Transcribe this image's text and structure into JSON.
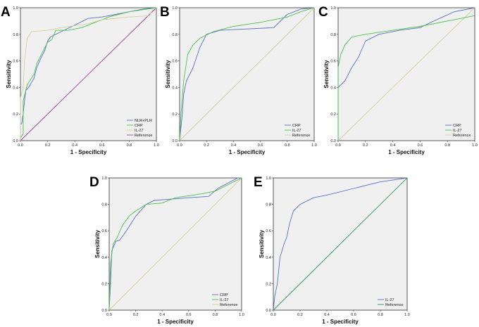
{
  "chart_data": [
    {
      "type": "line",
      "panel_label": "A",
      "xlabel": "1 - Specificity",
      "ylabel": "Sensitivity",
      "xlim": [
        0,
        1
      ],
      "ylim": [
        0,
        1
      ],
      "ticks": [
        "0.0",
        "0.2",
        "0.4",
        "0.6",
        "0.8",
        "1.0"
      ],
      "legend_position": "bottom-right",
      "series": [
        {
          "name": "NLR+PLR",
          "color": "#5a6fc4",
          "points": [
            [
              0,
              0
            ],
            [
              0,
              0.12
            ],
            [
              0.01,
              0.13
            ],
            [
              0.02,
              0.2
            ],
            [
              0.03,
              0.3
            ],
            [
              0.04,
              0.38
            ],
            [
              0.06,
              0.4
            ],
            [
              0.1,
              0.47
            ],
            [
              0.12,
              0.55
            ],
            [
              0.15,
              0.62
            ],
            [
              0.18,
              0.68
            ],
            [
              0.2,
              0.75
            ],
            [
              0.22,
              0.78
            ],
            [
              0.3,
              0.82
            ],
            [
              0.4,
              0.87
            ],
            [
              0.5,
              0.92
            ],
            [
              0.6,
              0.93
            ],
            [
              0.7,
              0.95
            ],
            [
              0.8,
              0.97
            ],
            [
              0.9,
              0.99
            ],
            [
              1,
              1
            ]
          ]
        },
        {
          "name": "CRP",
          "color": "#4cc24c",
          "points": [
            [
              0,
              0
            ],
            [
              0,
              0.02
            ],
            [
              0.02,
              0.05
            ],
            [
              0.02,
              0.3
            ],
            [
              0.05,
              0.42
            ],
            [
              0.1,
              0.5
            ],
            [
              0.12,
              0.58
            ],
            [
              0.2,
              0.74
            ],
            [
              0.23,
              0.76
            ],
            [
              0.26,
              0.83
            ],
            [
              0.35,
              0.83
            ],
            [
              0.45,
              0.85
            ],
            [
              0.55,
              0.89
            ],
            [
              0.65,
              0.93
            ],
            [
              0.8,
              0.97
            ],
            [
              1,
              1
            ]
          ]
        },
        {
          "name": "IL-27",
          "color": "#d8cf9c",
          "points": [
            [
              0,
              0
            ],
            [
              0,
              0.32
            ],
            [
              0.02,
              0.4
            ],
            [
              0.03,
              0.6
            ],
            [
              0.05,
              0.77
            ],
            [
              0.07,
              0.8
            ],
            [
              0.08,
              0.82
            ],
            [
              0.2,
              0.83
            ],
            [
              0.3,
              0.85
            ],
            [
              0.5,
              0.88
            ],
            [
              0.6,
              0.91
            ],
            [
              0.8,
              0.93
            ],
            [
              0.95,
              0.94
            ],
            [
              0.97,
              0.98
            ],
            [
              1,
              1
            ]
          ]
        },
        {
          "name": "Reference",
          "color": "#a040a0",
          "points": [
            [
              0,
              0
            ],
            [
              1,
              1
            ]
          ]
        }
      ]
    },
    {
      "type": "line",
      "panel_label": "B",
      "xlabel": "1 - Specificity",
      "ylabel": "Sensitivity",
      "xlim": [
        0,
        1
      ],
      "ylim": [
        0,
        1
      ],
      "ticks": [
        "0.0",
        "0.2",
        "0.4",
        "0.6",
        "0.8",
        "1.0"
      ],
      "legend_position": "bottom-right",
      "series": [
        {
          "name": "CRP",
          "color": "#5a6fc4",
          "points": [
            [
              0,
              0
            ],
            [
              0.02,
              0.2
            ],
            [
              0.03,
              0.35
            ],
            [
              0.05,
              0.45
            ],
            [
              0.1,
              0.55
            ],
            [
              0.15,
              0.7
            ],
            [
              0.2,
              0.8
            ],
            [
              0.3,
              0.83
            ],
            [
              0.5,
              0.84
            ],
            [
              0.7,
              0.85
            ],
            [
              0.8,
              0.95
            ],
            [
              0.9,
              0.99
            ],
            [
              1,
              1
            ]
          ]
        },
        {
          "name": "IL-27",
          "color": "#4cc24c",
          "points": [
            [
              0,
              0
            ],
            [
              0.01,
              0.2
            ],
            [
              0.03,
              0.45
            ],
            [
              0.06,
              0.65
            ],
            [
              0.1,
              0.72
            ],
            [
              0.15,
              0.77
            ],
            [
              0.25,
              0.82
            ],
            [
              0.4,
              0.86
            ],
            [
              0.6,
              0.89
            ],
            [
              0.8,
              0.93
            ],
            [
              0.9,
              0.97
            ],
            [
              1,
              1
            ]
          ]
        },
        {
          "name": "Reference",
          "color": "#d8cf9c",
          "points": [
            [
              0,
              0
            ],
            [
              1,
              1
            ]
          ]
        }
      ]
    },
    {
      "type": "line",
      "panel_label": "C",
      "xlabel": "1 - Specificity",
      "ylabel": "Sensitivity",
      "xlim": [
        0,
        1
      ],
      "ylim": [
        0,
        1
      ],
      "ticks": [
        "0.0",
        "0.2",
        "0.4",
        "0.6",
        "0.8",
        "1.0"
      ],
      "legend_position": "bottom-right",
      "series": [
        {
          "name": "CRP",
          "color": "#5a6fc4",
          "points": [
            [
              0,
              0
            ],
            [
              0,
              0.4
            ],
            [
              0.05,
              0.45
            ],
            [
              0.1,
              0.55
            ],
            [
              0.15,
              0.63
            ],
            [
              0.2,
              0.75
            ],
            [
              0.3,
              0.8
            ],
            [
              0.45,
              0.83
            ],
            [
              0.6,
              0.85
            ],
            [
              0.7,
              0.9
            ],
            [
              0.85,
              0.97
            ],
            [
              1,
              1
            ]
          ]
        },
        {
          "name": "IL-27",
          "color": "#4cc24c",
          "points": [
            [
              0,
              0
            ],
            [
              0,
              0.55
            ],
            [
              0.02,
              0.65
            ],
            [
              0.05,
              0.72
            ],
            [
              0.1,
              0.78
            ],
            [
              0.2,
              0.8
            ],
            [
              0.4,
              0.83
            ],
            [
              0.6,
              0.86
            ],
            [
              0.8,
              0.9
            ],
            [
              0.95,
              0.93
            ],
            [
              1,
              0.94
            ]
          ]
        },
        {
          "name": "Reference",
          "color": "#d8cf9c",
          "points": [
            [
              0,
              0
            ],
            [
              1,
              1
            ]
          ]
        }
      ]
    },
    {
      "type": "line",
      "panel_label": "D",
      "xlabel": "1 - Specificity",
      "ylabel": "Sensitivity",
      "xlim": [
        0,
        1
      ],
      "ylim": [
        0,
        1
      ],
      "ticks": [
        "0.0",
        "0.2",
        "0.4",
        "0.6",
        "0.8",
        "1.0"
      ],
      "legend_position": "bottom-right",
      "series": [
        {
          "name": "CRP",
          "color": "#5a6fc4",
          "points": [
            [
              0,
              0
            ],
            [
              0.01,
              0.2
            ],
            [
              0.02,
              0.45
            ],
            [
              0.05,
              0.52
            ],
            [
              0.08,
              0.53
            ],
            [
              0.13,
              0.6
            ],
            [
              0.2,
              0.71
            ],
            [
              0.28,
              0.8
            ],
            [
              0.34,
              0.83
            ],
            [
              0.6,
              0.85
            ],
            [
              0.75,
              0.86
            ],
            [
              0.82,
              0.92
            ],
            [
              0.97,
              1
            ],
            [
              1,
              1
            ]
          ]
        },
        {
          "name": "IL-27",
          "color": "#4cc24c",
          "points": [
            [
              0,
              0
            ],
            [
              0.01,
              0.35
            ],
            [
              0.03,
              0.5
            ],
            [
              0.06,
              0.55
            ],
            [
              0.1,
              0.64
            ],
            [
              0.15,
              0.71
            ],
            [
              0.2,
              0.75
            ],
            [
              0.28,
              0.8
            ],
            [
              0.4,
              0.81
            ],
            [
              0.5,
              0.85
            ],
            [
              0.7,
              0.88
            ],
            [
              0.8,
              0.9
            ],
            [
              0.9,
              0.95
            ],
            [
              1,
              1
            ]
          ]
        },
        {
          "name": "Reference",
          "color": "#d8cf9c",
          "points": [
            [
              0,
              0
            ],
            [
              1,
              1
            ]
          ]
        }
      ]
    },
    {
      "type": "line",
      "panel_label": "E",
      "xlabel": "1 - Specificity",
      "ylabel": "Sensitivity",
      "xlim": [
        0,
        1
      ],
      "ylim": [
        0,
        1
      ],
      "ticks": [
        "0.0",
        "0.2",
        "0.4",
        "0.6",
        "0.8",
        "1.0"
      ],
      "legend_position": "bottom-right",
      "series": [
        {
          "name": "IL-27",
          "color": "#5a6fc4",
          "points": [
            [
              0,
              0
            ],
            [
              0.01,
              0.1
            ],
            [
              0.03,
              0.2
            ],
            [
              0.05,
              0.4
            ],
            [
              0.08,
              0.5
            ],
            [
              0.1,
              0.55
            ],
            [
              0.12,
              0.65
            ],
            [
              0.15,
              0.75
            ],
            [
              0.2,
              0.8
            ],
            [
              0.3,
              0.85
            ],
            [
              0.4,
              0.87
            ],
            [
              0.6,
              0.92
            ],
            [
              0.8,
              0.97
            ],
            [
              1,
              1
            ]
          ]
        },
        {
          "name": "Reference",
          "color": "#2a9a5a",
          "points": [
            [
              0,
              0
            ],
            [
              1,
              1
            ]
          ]
        }
      ]
    }
  ]
}
